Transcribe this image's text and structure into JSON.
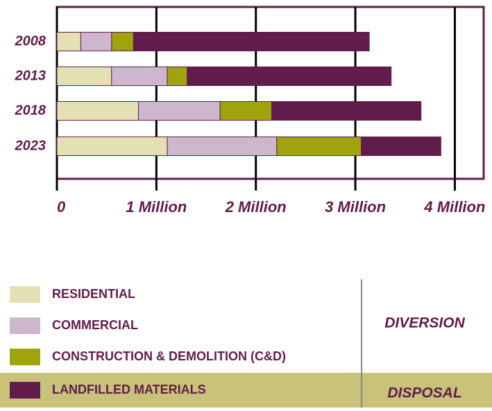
{
  "chart_data": {
    "type": "stacked-barh",
    "categories": [
      "2008",
      "2013",
      "2018",
      "2023"
    ],
    "series": [
      {
        "name": "RESIDENTIAL",
        "color": "#e3e0b3",
        "values": [
          240000,
          550000,
          820000,
          1110000
        ]
      },
      {
        "name": "COMMERCIAL",
        "color": "#cdb7cc",
        "values": [
          310000,
          560000,
          820000,
          1100000
        ]
      },
      {
        "name": "CONSTRUCTION & DEMOLITION (C&D)",
        "color": "#9fa30e",
        "values": [
          220000,
          200000,
          520000,
          850000
        ]
      },
      {
        "name": "LANDFILLED MATERIALS",
        "color": "#621c4b",
        "values": [
          2370000,
          2050000,
          1500000,
          800000
        ]
      }
    ],
    "xlim": [
      0,
      4290000
    ],
    "xticks": [
      0,
      {
        "value": 1000000,
        "label": "1 Million"
      },
      {
        "value": 2000000,
        "label": "2 Million"
      },
      {
        "value": 3000000,
        "label": "3 Million"
      },
      {
        "value": 4000000,
        "label": "4 Million"
      }
    ],
    "grid": true,
    "legend_groups": [
      "DIVERSION",
      "DISPOSAL"
    ]
  }
}
